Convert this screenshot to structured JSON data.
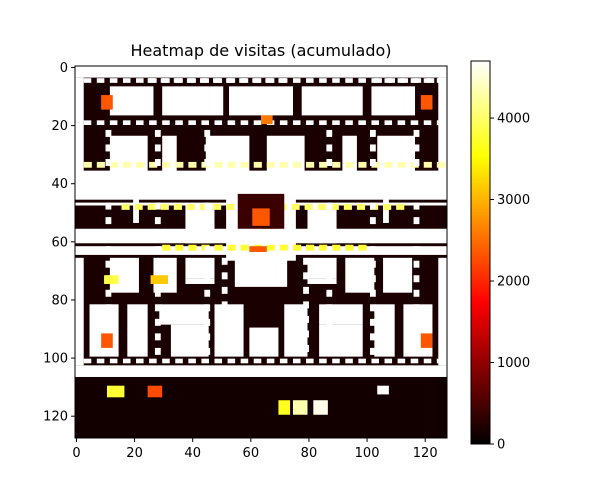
{
  "chart_data": {
    "type": "heatmap",
    "title": "Heatmap de visitas (acumulado)",
    "xlabel": "",
    "ylabel": "",
    "xlim": [
      0,
      128
    ],
    "ylim": [
      128,
      0
    ],
    "x_ticks": [
      0,
      20,
      40,
      60,
      80,
      100,
      120
    ],
    "y_ticks": [
      0,
      20,
      40,
      60,
      80,
      100,
      120
    ],
    "colorbar": {
      "colormap": "hot",
      "min": 0,
      "max": 4700,
      "ticks": [
        0,
        1000,
        2000,
        3000,
        4000
      ]
    },
    "colors": {
      "wall": "#ffffff",
      "corridor": "#1a0000",
      "hud": "#120000"
    },
    "walls": [
      [
        0,
        0,
        128,
        4
      ],
      [
        0,
        4,
        3,
        33
      ],
      [
        125,
        4,
        3,
        33
      ],
      [
        0,
        36,
        128,
        10
      ],
      [
        0,
        47,
        128,
        1
      ],
      [
        0,
        56,
        128,
        5
      ],
      [
        0,
        62,
        128,
        2
      ],
      [
        0,
        64,
        128,
        1
      ],
      [
        0,
        66,
        3,
        37
      ],
      [
        125,
        66,
        3,
        37
      ],
      [
        0,
        103,
        128,
        4
      ],
      [
        12,
        7,
        15,
        10
      ],
      [
        30,
        7,
        21,
        10
      ],
      [
        53,
        7,
        22,
        10
      ],
      [
        78,
        7,
        21,
        10
      ],
      [
        102,
        7,
        15,
        10
      ],
      [
        12,
        24,
        13,
        20
      ],
      [
        30,
        24,
        5,
        20
      ],
      [
        45,
        24,
        15,
        14
      ],
      [
        66,
        24,
        13,
        14
      ],
      [
        92,
        24,
        5,
        20
      ],
      [
        104,
        24,
        13,
        20
      ],
      [
        20,
        44,
        2,
        10
      ],
      [
        106,
        44,
        2,
        10
      ],
      [
        38,
        48,
        10,
        13
      ],
      [
        80,
        48,
        10,
        13
      ],
      [
        52,
        41,
        24,
        26
      ],
      [
        12,
        66,
        10,
        12
      ],
      [
        27,
        66,
        8,
        12
      ],
      [
        38,
        66,
        10,
        7
      ],
      [
        55,
        66,
        18,
        10
      ],
      [
        80,
        66,
        10,
        7
      ],
      [
        93,
        66,
        10,
        12
      ],
      [
        106,
        66,
        10,
        12
      ],
      [
        38,
        73,
        10,
        2
      ],
      [
        80,
        73,
        10,
        2
      ],
      [
        5,
        82,
        10,
        18
      ],
      [
        18,
        82,
        7,
        18
      ],
      [
        29,
        82,
        17,
        7
      ],
      [
        48,
        82,
        10,
        18
      ],
      [
        72,
        82,
        8,
        18
      ],
      [
        84,
        82,
        15,
        7
      ],
      [
        103,
        82,
        7,
        18
      ],
      [
        113,
        82,
        10,
        18
      ],
      [
        33,
        89,
        13,
        11
      ],
      [
        84,
        89,
        15,
        11
      ],
      [
        60,
        90,
        10,
        10
      ]
    ],
    "hotspots": [
      [
        10,
        72,
        5,
        3,
        0.82
      ],
      [
        26,
        72,
        6,
        3,
        0.67
      ],
      [
        64,
        50,
        6,
        6,
        0.55
      ],
      [
        75,
        115,
        5,
        5,
        0.92
      ],
      [
        70,
        115,
        4,
        5,
        0.78
      ],
      [
        82,
        115,
        5,
        5,
        0.98
      ],
      [
        104,
        110,
        4,
        3,
        1.0
      ],
      [
        11,
        110,
        6,
        4,
        0.8
      ],
      [
        25,
        110,
        5,
        4,
        0.48
      ],
      [
        64,
        17,
        4,
        3,
        0.55
      ],
      [
        9,
        10,
        4,
        5,
        0.5
      ],
      [
        119,
        10,
        4,
        5,
        0.5
      ],
      [
        9,
        92,
        4,
        5,
        0.5
      ],
      [
        119,
        92,
        4,
        5,
        0.5
      ],
      [
        60,
        62,
        6,
        2,
        0.5
      ]
    ]
  }
}
